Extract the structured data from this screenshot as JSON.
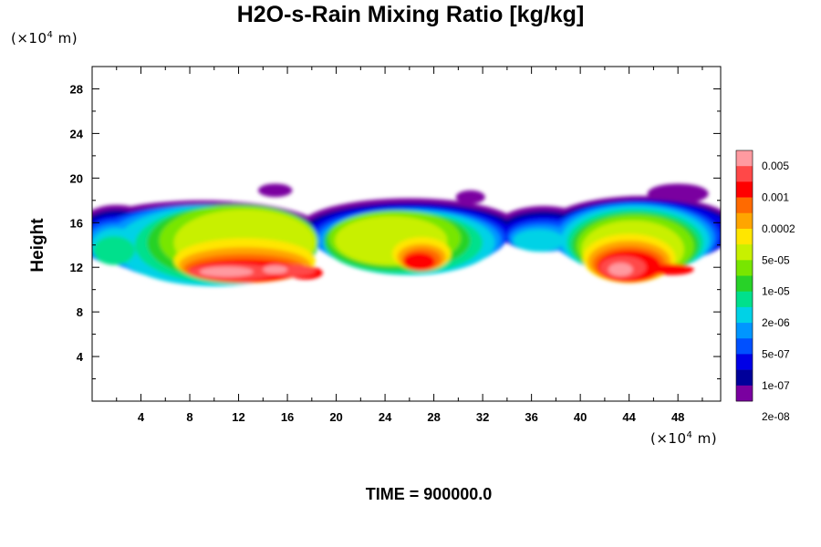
{
  "chart_data": {
    "type": "heatmap",
    "title": "H2O-s-Rain Mixing Ratio [kg/kg]",
    "ylabel": "Height",
    "x_unit_prefix": "(×10",
    "x_unit_exp": "4",
    "x_unit_suffix": " m)",
    "y_unit_prefix": "(×10",
    "y_unit_exp": "4",
    "y_unit_suffix": " m)",
    "xlim": [
      0,
      51.5
    ],
    "ylim": [
      0,
      30
    ],
    "x_ticks": [
      4,
      8,
      12,
      16,
      20,
      24,
      28,
      32,
      36,
      40,
      44,
      48
    ],
    "y_ticks": [
      4,
      8,
      12,
      16,
      20,
      24,
      28
    ],
    "colorbar": {
      "labels": [
        "0.005",
        "0.001",
        "0.0002",
        "5e-05",
        "1e-05",
        "2e-06",
        "5e-07",
        "1e-07",
        "2e-08"
      ],
      "colors": [
        "#ff9aa0",
        "#ff4848",
        "#ff0000",
        "#ff6a00",
        "#ffa500",
        "#ffe600",
        "#c8f000",
        "#78e600",
        "#28d228",
        "#00e08c",
        "#00d2e6",
        "#0096ff",
        "#0050ff",
        "#0000e6",
        "#00009a",
        "#7a00a0"
      ]
    },
    "time_label": "TIME = 900000.0"
  }
}
